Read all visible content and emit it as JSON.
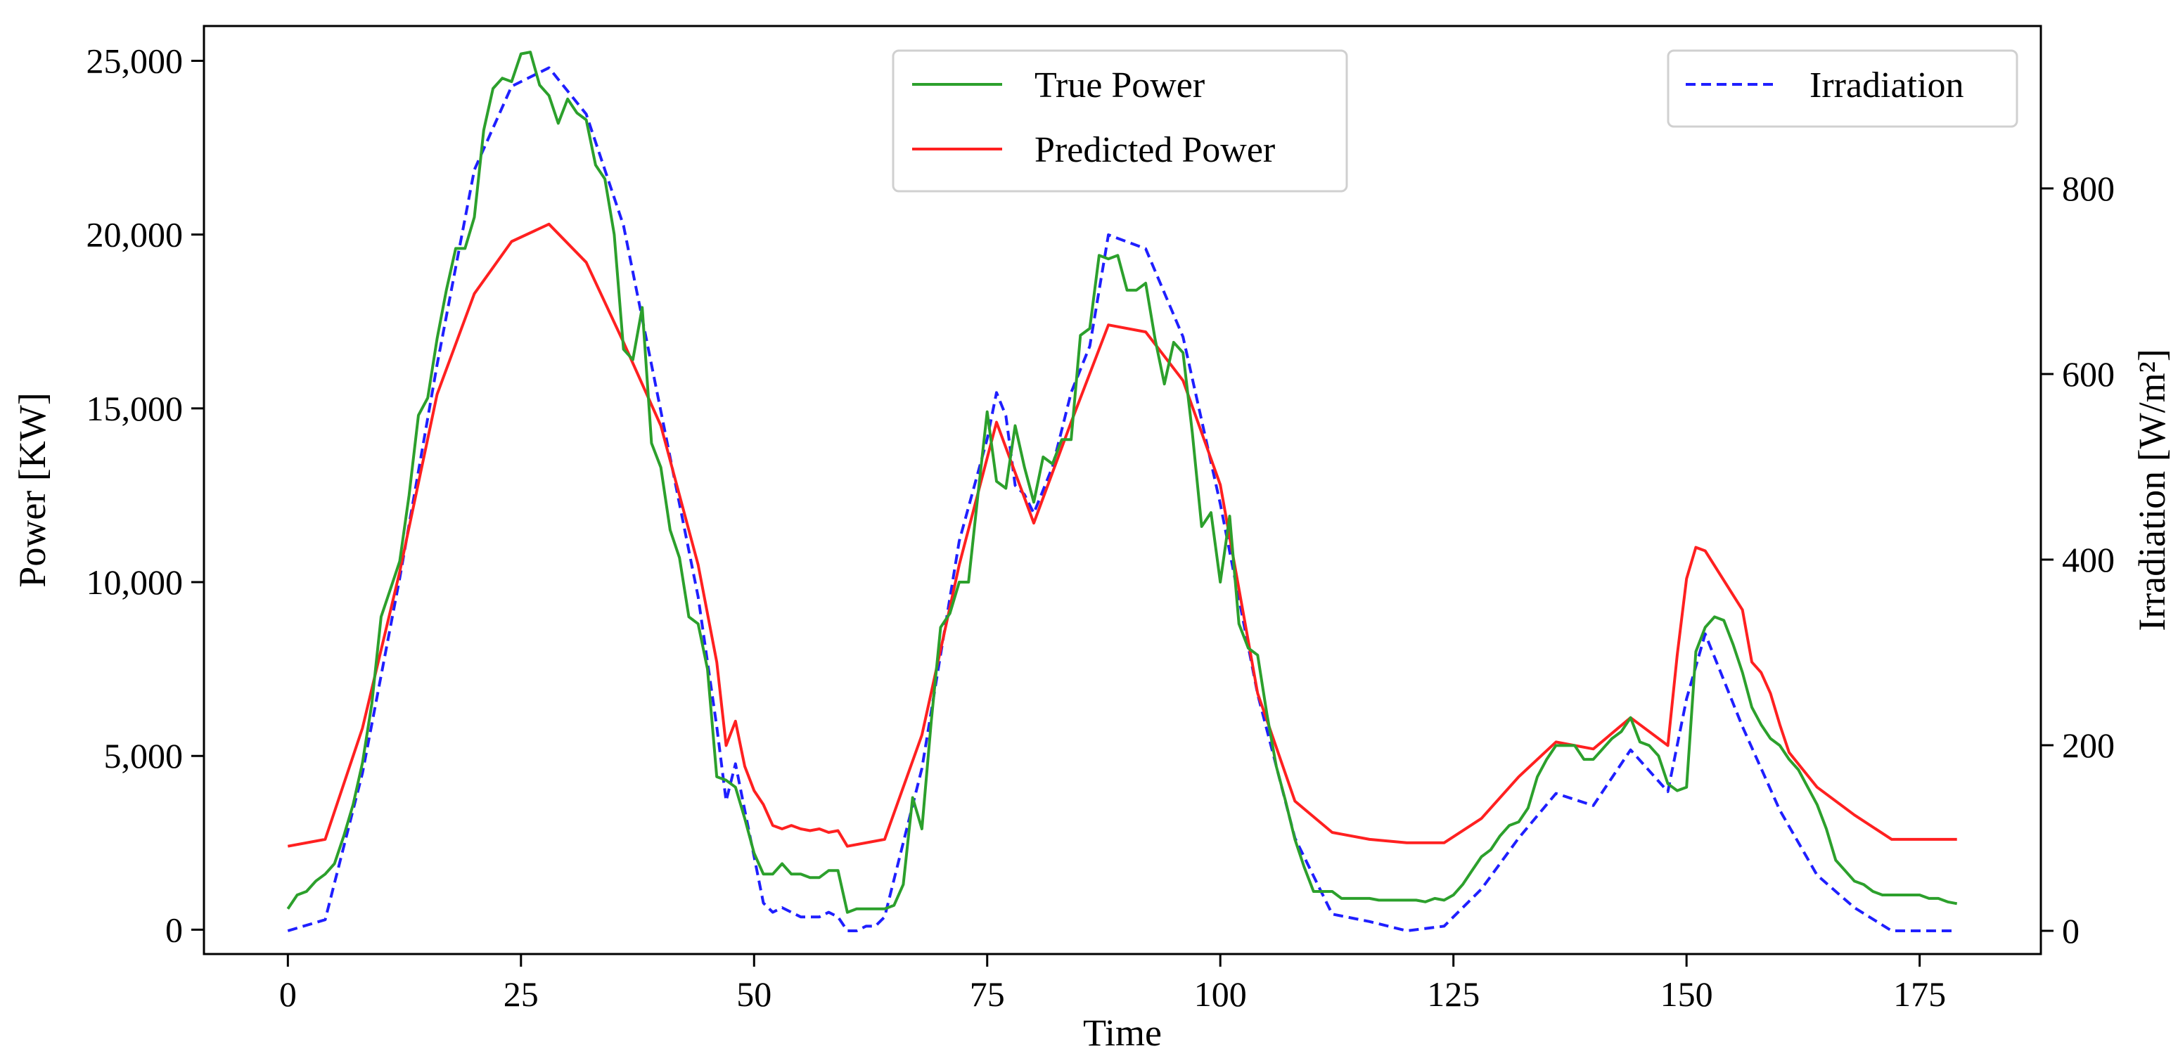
{
  "chart_data": {
    "type": "line",
    "title": "",
    "xlabel": "Time",
    "ylabel": "Power [KW]",
    "y2label": "Irradiation [W/m²]",
    "xlim": [
      -9,
      188
    ],
    "ylim": [
      -700,
      26000
    ],
    "y2lim": [
      -25,
      975
    ],
    "xticks": [
      0,
      25,
      50,
      75,
      100,
      125,
      150,
      175
    ],
    "yticks": [
      0,
      5000,
      10000,
      15000,
      20000,
      25000
    ],
    "y2ticks": [
      0,
      200,
      400,
      600,
      800
    ],
    "x_tick_labels": [
      "0",
      "25",
      "50",
      "75",
      "100",
      "125",
      "150",
      "175"
    ],
    "y_tick_labels": [
      "0",
      "5,000",
      "10,000",
      "15,000",
      "20,000",
      "25,000"
    ],
    "y2_tick_labels": [
      "0",
      "200",
      "400",
      "600",
      "800"
    ],
    "legend_left": {
      "position": "top-center",
      "entries": [
        "True Power",
        "Predicted Power"
      ]
    },
    "legend_right": {
      "position": "top-right",
      "entries": [
        "Irradiation"
      ]
    },
    "series": [
      {
        "name": "True Power",
        "axis": "left",
        "color": "#2ca02c",
        "style": "solid",
        "points": [
          [
            0,
            600
          ],
          [
            1,
            1000
          ],
          [
            2,
            1100
          ],
          [
            3,
            1400
          ],
          [
            4,
            1600
          ],
          [
            5,
            1900
          ],
          [
            6,
            2700
          ],
          [
            7,
            3600
          ],
          [
            8,
            4800
          ],
          [
            9,
            6500
          ],
          [
            10,
            9000
          ],
          [
            11,
            9800
          ],
          [
            12,
            10600
          ],
          [
            13,
            12500
          ],
          [
            14,
            14800
          ],
          [
            15,
            15300
          ],
          [
            16,
            17000
          ],
          [
            17,
            18400
          ],
          [
            18,
            19600
          ],
          [
            19,
            19600
          ],
          [
            20,
            20500
          ],
          [
            21,
            23000
          ],
          [
            22,
            24200
          ],
          [
            23,
            24500
          ],
          [
            24,
            24400
          ],
          [
            25,
            25200
          ],
          [
            26,
            25250
          ],
          [
            27,
            24300
          ],
          [
            28,
            24000
          ],
          [
            29,
            23200
          ],
          [
            30,
            23900
          ],
          [
            31,
            23500
          ],
          [
            32,
            23300
          ],
          [
            33,
            22000
          ],
          [
            34,
            21600
          ],
          [
            35,
            20000
          ],
          [
            36,
            16700
          ],
          [
            37,
            16400
          ],
          [
            38,
            17900
          ],
          [
            39,
            14000
          ],
          [
            40,
            13300
          ],
          [
            41,
            11500
          ],
          [
            42,
            10700
          ],
          [
            43,
            9000
          ],
          [
            44,
            8800
          ],
          [
            45,
            7500
          ],
          [
            46,
            4400
          ],
          [
            47,
            4300
          ],
          [
            48,
            4100
          ],
          [
            49,
            3200
          ],
          [
            50,
            2200
          ],
          [
            51,
            1600
          ],
          [
            52,
            1600
          ],
          [
            53,
            1900
          ],
          [
            54,
            1600
          ],
          [
            55,
            1600
          ],
          [
            56,
            1500
          ],
          [
            57,
            1500
          ],
          [
            58,
            1700
          ],
          [
            59,
            1700
          ],
          [
            60,
            500
          ],
          [
            61,
            600
          ],
          [
            62,
            600
          ],
          [
            63,
            600
          ],
          [
            64,
            600
          ],
          [
            65,
            700
          ],
          [
            66,
            1300
          ],
          [
            67,
            3800
          ],
          [
            68,
            2900
          ],
          [
            69,
            6000
          ],
          [
            70,
            8700
          ],
          [
            71,
            9100
          ],
          [
            72,
            10000
          ],
          [
            73,
            10000
          ],
          [
            74,
            12500
          ],
          [
            75,
            14900
          ],
          [
            76,
            12900
          ],
          [
            77,
            12700
          ],
          [
            78,
            14500
          ],
          [
            79,
            13300
          ],
          [
            80,
            12300
          ],
          [
            81,
            13600
          ],
          [
            82,
            13400
          ],
          [
            83,
            14100
          ],
          [
            84,
            14100
          ],
          [
            85,
            17100
          ],
          [
            86,
            17300
          ],
          [
            87,
            19400
          ],
          [
            88,
            19300
          ],
          [
            89,
            19400
          ],
          [
            90,
            18400
          ],
          [
            91,
            18400
          ],
          [
            92,
            18600
          ],
          [
            93,
            17000
          ],
          [
            94,
            15700
          ],
          [
            95,
            16900
          ],
          [
            96,
            16600
          ],
          [
            97,
            14300
          ],
          [
            98,
            11600
          ],
          [
            99,
            12000
          ],
          [
            100,
            10000
          ],
          [
            101,
            11900
          ],
          [
            102,
            8800
          ],
          [
            103,
            8100
          ],
          [
            104,
            7900
          ],
          [
            105,
            6200
          ],
          [
            106,
            4700
          ],
          [
            107,
            3700
          ],
          [
            108,
            2600
          ],
          [
            109,
            1800
          ],
          [
            110,
            1100
          ],
          [
            111,
            1100
          ],
          [
            112,
            1100
          ],
          [
            113,
            900
          ],
          [
            114,
            900
          ],
          [
            115,
            900
          ],
          [
            116,
            900
          ],
          [
            117,
            850
          ],
          [
            118,
            850
          ],
          [
            119,
            850
          ],
          [
            120,
            850
          ],
          [
            121,
            850
          ],
          [
            122,
            800
          ],
          [
            123,
            900
          ],
          [
            124,
            850
          ],
          [
            125,
            1000
          ],
          [
            126,
            1300
          ],
          [
            127,
            1700
          ],
          [
            128,
            2100
          ],
          [
            129,
            2300
          ],
          [
            130,
            2700
          ],
          [
            131,
            3000
          ],
          [
            132,
            3100
          ],
          [
            133,
            3500
          ],
          [
            134,
            4400
          ],
          [
            135,
            4900
          ],
          [
            136,
            5300
          ],
          [
            137,
            5300
          ],
          [
            138,
            5300
          ],
          [
            139,
            4900
          ],
          [
            140,
            4900
          ],
          [
            141,
            5200
          ],
          [
            142,
            5500
          ],
          [
            143,
            5700
          ],
          [
            144,
            6100
          ],
          [
            145,
            5400
          ],
          [
            146,
            5300
          ],
          [
            147,
            5000
          ],
          [
            148,
            4200
          ],
          [
            149,
            4000
          ],
          [
            150,
            4100
          ],
          [
            151,
            8000
          ],
          [
            152,
            8700
          ],
          [
            153,
            9000
          ],
          [
            154,
            8900
          ],
          [
            155,
            8200
          ],
          [
            156,
            7400
          ],
          [
            157,
            6400
          ],
          [
            158,
            5900
          ],
          [
            159,
            5500
          ],
          [
            160,
            5300
          ],
          [
            161,
            4900
          ],
          [
            162,
            4600
          ],
          [
            163,
            4100
          ],
          [
            164,
            3600
          ],
          [
            165,
            2900
          ],
          [
            166,
            2000
          ],
          [
            167,
            1700
          ],
          [
            168,
            1400
          ],
          [
            169,
            1300
          ],
          [
            170,
            1100
          ],
          [
            171,
            1000
          ],
          [
            172,
            1000
          ],
          [
            173,
            1000
          ],
          [
            174,
            1000
          ],
          [
            175,
            1000
          ],
          [
            176,
            900
          ],
          [
            177,
            900
          ],
          [
            178,
            800
          ],
          [
            179,
            750
          ]
        ]
      },
      {
        "name": "Predicted Power",
        "axis": "left",
        "color": "#ff2020",
        "style": "solid",
        "points": [
          [
            0,
            2400
          ],
          [
            4,
            2600
          ],
          [
            8,
            5800
          ],
          [
            12,
            10300
          ],
          [
            16,
            15400
          ],
          [
            20,
            18300
          ],
          [
            24,
            19800
          ],
          [
            28,
            20300
          ],
          [
            32,
            19200
          ],
          [
            36,
            16900
          ],
          [
            40,
            14500
          ],
          [
            44,
            10500
          ],
          [
            46,
            7700
          ],
          [
            47,
            5300
          ],
          [
            48,
            6000
          ],
          [
            49,
            4700
          ],
          [
            50,
            4000
          ],
          [
            51,
            3600
          ],
          [
            52,
            3000
          ],
          [
            53,
            2900
          ],
          [
            54,
            3000
          ],
          [
            55,
            2900
          ],
          [
            56,
            2850
          ],
          [
            57,
            2900
          ],
          [
            58,
            2800
          ],
          [
            59,
            2850
          ],
          [
            60,
            2400
          ],
          [
            64,
            2600
          ],
          [
            68,
            5600
          ],
          [
            72,
            10500
          ],
          [
            76,
            14600
          ],
          [
            80,
            11700
          ],
          [
            84,
            14600
          ],
          [
            88,
            17400
          ],
          [
            92,
            17200
          ],
          [
            96,
            15800
          ],
          [
            100,
            12800
          ],
          [
            104,
            6800
          ],
          [
            108,
            3700
          ],
          [
            112,
            2800
          ],
          [
            116,
            2600
          ],
          [
            120,
            2500
          ],
          [
            124,
            2500
          ],
          [
            128,
            3200
          ],
          [
            132,
            4400
          ],
          [
            136,
            5400
          ],
          [
            140,
            5200
          ],
          [
            144,
            6100
          ],
          [
            148,
            5300
          ],
          [
            149,
            7900
          ],
          [
            150,
            10100
          ],
          [
            151,
            11000
          ],
          [
            152,
            10900
          ],
          [
            156,
            9200
          ],
          [
            157,
            7700
          ],
          [
            158,
            7400
          ],
          [
            159,
            6800
          ],
          [
            160,
            5900
          ],
          [
            161,
            5100
          ],
          [
            164,
            4100
          ],
          [
            168,
            3300
          ],
          [
            172,
            2600
          ],
          [
            176,
            2600
          ],
          [
            179,
            2600
          ]
        ]
      },
      {
        "name": "Irradiation",
        "axis": "right",
        "color": "#1f1fff",
        "style": "dashed",
        "points": [
          [
            0,
            0
          ],
          [
            4,
            12
          ],
          [
            8,
            170
          ],
          [
            12,
            380
          ],
          [
            16,
            610
          ],
          [
            20,
            820
          ],
          [
            24,
            910
          ],
          [
            28,
            930
          ],
          [
            32,
            880
          ],
          [
            36,
            760
          ],
          [
            40,
            560
          ],
          [
            44,
            360
          ],
          [
            46,
            220
          ],
          [
            47,
            140
          ],
          [
            48,
            180
          ],
          [
            49,
            130
          ],
          [
            50,
            80
          ],
          [
            51,
            30
          ],
          [
            52,
            20
          ],
          [
            53,
            25
          ],
          [
            54,
            20
          ],
          [
            55,
            15
          ],
          [
            56,
            15
          ],
          [
            57,
            15
          ],
          [
            58,
            20
          ],
          [
            59,
            15
          ],
          [
            60,
            0
          ],
          [
            61,
            0
          ],
          [
            62,
            5
          ],
          [
            63,
            5
          ],
          [
            64,
            15
          ],
          [
            68,
            175
          ],
          [
            72,
            420
          ],
          [
            75,
            530
          ],
          [
            76,
            580
          ],
          [
            77,
            555
          ],
          [
            78,
            480
          ],
          [
            79,
            470
          ],
          [
            80,
            450
          ],
          [
            81,
            475
          ],
          [
            82,
            500
          ],
          [
            84,
            580
          ],
          [
            86,
            630
          ],
          [
            88,
            750
          ],
          [
            92,
            735
          ],
          [
            96,
            640
          ],
          [
            100,
            460
          ],
          [
            104,
            255
          ],
          [
            108,
            100
          ],
          [
            112,
            18
          ],
          [
            116,
            10
          ],
          [
            120,
            0
          ],
          [
            124,
            5
          ],
          [
            128,
            45
          ],
          [
            132,
            100
          ],
          [
            136,
            148
          ],
          [
            140,
            135
          ],
          [
            144,
            195
          ],
          [
            148,
            150
          ],
          [
            150,
            250
          ],
          [
            152,
            320
          ],
          [
            156,
            220
          ],
          [
            160,
            130
          ],
          [
            164,
            60
          ],
          [
            168,
            25
          ],
          [
            172,
            0
          ],
          [
            176,
            0
          ],
          [
            179,
            0
          ]
        ]
      }
    ]
  }
}
